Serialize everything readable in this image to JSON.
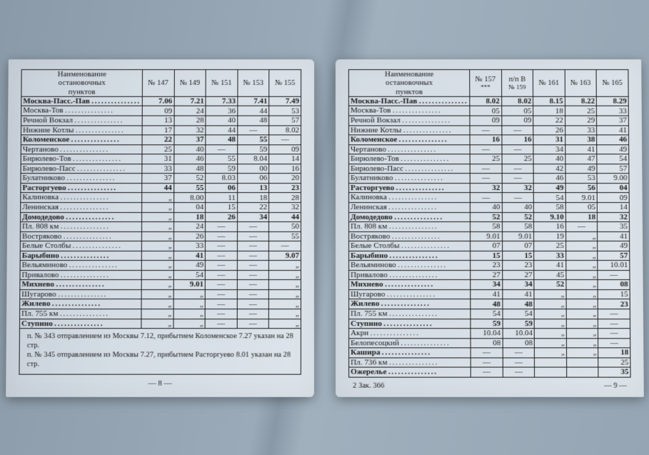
{
  "headers": {
    "stops_label": "Наименование\nостановочных\nпунктов",
    "left_trains": [
      "№ 147",
      "№ 149",
      "№ 151",
      "№ 153",
      "№ 155"
    ],
    "right_trains": [
      "№ 157",
      "п/п В",
      "№ 161",
      "№ 163",
      "№ 165"
    ],
    "right_subs": [
      "***",
      "№ 159",
      "",
      "",
      ""
    ]
  },
  "stops": [
    {
      "name": "Москва-Пасс.-Пав",
      "bold": true
    },
    {
      "name": "Москва-Тов",
      "bold": false
    },
    {
      "name": "Речной Вокзал",
      "bold": false
    },
    {
      "name": "Нижние Котлы",
      "bold": false
    },
    {
      "name": "Коломенское",
      "bold": true
    },
    {
      "name": "Чертаново",
      "bold": false
    },
    {
      "name": "Бирюлево-Тов",
      "bold": false
    },
    {
      "name": "Бирюлево-Пасс",
      "bold": false
    },
    {
      "name": "Булатниково",
      "bold": false
    },
    {
      "name": "Расторгуево",
      "bold": true
    },
    {
      "name": "Калиновка",
      "bold": false
    },
    {
      "name": "Ленинская",
      "bold": false
    },
    {
      "name": "Домодедово",
      "bold": true
    },
    {
      "name": "Пл. 808 км",
      "bold": false
    },
    {
      "name": "Востряково",
      "bold": false
    },
    {
      "name": "Белые Столбы",
      "bold": false
    },
    {
      "name": "Барыбино",
      "bold": true
    },
    {
      "name": "Вельяминово",
      "bold": false
    },
    {
      "name": "Привалово",
      "bold": false
    },
    {
      "name": "Михнево",
      "bold": true
    },
    {
      "name": "Шугарово",
      "bold": false
    },
    {
      "name": "Жилево",
      "bold": true
    },
    {
      "name": "Пл. 755 км",
      "bold": false
    },
    {
      "name": "Ступино",
      "bold": true
    },
    {
      "name": "Акри",
      "bold": false
    },
    {
      "name": "Белопесоцкий",
      "bold": false
    },
    {
      "name": "Кашира",
      "bold": true
    },
    {
      "name": "Пл. 736 км",
      "bold": false
    },
    {
      "name": "Ожерелье",
      "bold": true
    }
  ],
  "left_times": [
    [
      "7.06",
      "7.21",
      "7.33",
      "7.41",
      "7.49"
    ],
    [
      "09",
      "24",
      "36",
      "44",
      "53"
    ],
    [
      "13",
      "28",
      "40",
      "48",
      "57"
    ],
    [
      "17",
      "32",
      "44",
      "—",
      "8.02"
    ],
    [
      "22",
      "37",
      "48",
      "55",
      "—"
    ],
    [
      "25",
      "40",
      "—",
      "59",
      "09"
    ],
    [
      "31",
      "46",
      "55",
      "8.04",
      "14"
    ],
    [
      "33",
      "48",
      "59",
      "00",
      "16"
    ],
    [
      "37",
      "52",
      "8.03",
      "06",
      "20"
    ],
    [
      "44",
      "55",
      "06",
      "13",
      "23"
    ],
    [
      "„",
      "8.00",
      "11",
      "18",
      "28"
    ],
    [
      "„",
      "04",
      "15",
      "22",
      "32"
    ],
    [
      "„",
      "18",
      "26",
      "34",
      "44"
    ],
    [
      "„",
      "24",
      "—",
      "—",
      "50"
    ],
    [
      "„",
      "26",
      "—",
      "—",
      "55"
    ],
    [
      "„",
      "33",
      "—",
      "—",
      "—"
    ],
    [
      "„",
      "41",
      "—",
      "—",
      "9.07"
    ],
    [
      "„",
      "49",
      "—",
      "—",
      "„"
    ],
    [
      "„",
      "54",
      "—",
      "—",
      "„"
    ],
    [
      "„",
      "9.01",
      "—",
      "—",
      "„"
    ],
    [
      "„",
      "„",
      "—",
      "—",
      "„"
    ],
    [
      "„",
      "„",
      "—",
      "—",
      "„"
    ],
    [
      "„",
      "„",
      "—",
      "—",
      "„"
    ],
    [
      "„",
      "„",
      "—",
      "—",
      "„"
    ],
    [
      "",
      "",
      "",
      "",
      ""
    ],
    [
      "",
      "",
      "",
      "",
      ""
    ],
    [
      "",
      "",
      "",
      "",
      ""
    ],
    [
      "",
      "",
      "",
      "",
      ""
    ],
    [
      "",
      "",
      "",
      "",
      ""
    ]
  ],
  "right_times": [
    [
      "8.02",
      "8.02",
      "8.15",
      "8.22",
      "8.29"
    ],
    [
      "05",
      "05",
      "18",
      "25",
      "33"
    ],
    [
      "09",
      "09",
      "22",
      "29",
      "37"
    ],
    [
      "—",
      "—",
      "26",
      "33",
      "41"
    ],
    [
      "16",
      "16",
      "31",
      "38",
      "46"
    ],
    [
      "—",
      "—",
      "34",
      "41",
      "49"
    ],
    [
      "25",
      "25",
      "40",
      "47",
      "54"
    ],
    [
      "—",
      "—",
      "42",
      "49",
      "57"
    ],
    [
      "—",
      "—",
      "46",
      "53",
      "9.00"
    ],
    [
      "32",
      "32",
      "49",
      "56",
      "04"
    ],
    [
      "—",
      "—",
      "54",
      "9.01",
      "09"
    ],
    [
      "40",
      "40",
      "58",
      "05",
      "14"
    ],
    [
      "52",
      "52",
      "9.10",
      "18",
      "32"
    ],
    [
      "58",
      "58",
      "16",
      "—",
      "35"
    ],
    [
      "9.01",
      "9.01",
      "19",
      "„",
      "41"
    ],
    [
      "07",
      "07",
      "25",
      "„",
      "49"
    ],
    [
      "15",
      "15",
      "33",
      "„",
      "57"
    ],
    [
      "23",
      "23",
      "41",
      "„",
      "10.01"
    ],
    [
      "27",
      "27",
      "45",
      "„",
      "—"
    ],
    [
      "34",
      "34",
      "52",
      "„",
      "08"
    ],
    [
      "41",
      "41",
      "„",
      "„",
      "15"
    ],
    [
      "48",
      "48",
      "„",
      "„",
      "23"
    ],
    [
      "54",
      "54",
      "„",
      "„",
      "—"
    ],
    [
      "59",
      "59",
      "„",
      "„",
      "—"
    ],
    [
      "10.04",
      "10.04",
      "„",
      "„",
      "—"
    ],
    [
      "08",
      "08",
      "„",
      "„",
      "—"
    ],
    [
      "—",
      "—",
      "„",
      "„",
      "18"
    ],
    [
      "—",
      "—",
      "",
      "",
      "25"
    ],
    [
      "—",
      "—",
      "",
      "",
      "35"
    ]
  ],
  "footnotes": [
    "п. № 343 отправлением из Москвы 7.12, прибытием Коломенское 7.27 указан на 28 стр.",
    "п. № 345 отправлением из Москвы 7.27, прибытием Расторгуево 8.01 указан на 28 стр."
  ],
  "pagenums": {
    "left": "— 8 —",
    "right_left": "2  Зак. 366",
    "right_right": "— 9 —"
  }
}
